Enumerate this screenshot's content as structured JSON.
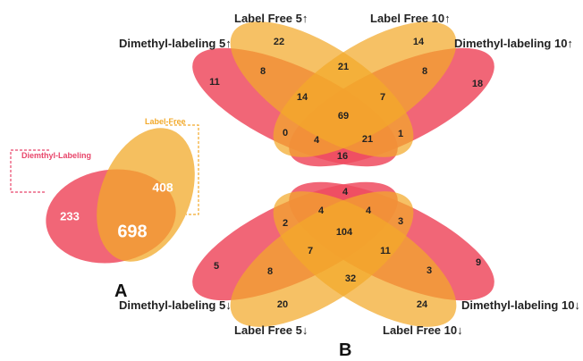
{
  "colors": {
    "dimethyl": "#ef4b5f",
    "label_free": "#f2a92a",
    "dimethyl_side_label": "#e8456a",
    "label_free_side_label": "#f2a92a"
  },
  "panel_a": {
    "letter": "A",
    "dimethyl_label": "Diemthyl-Labeling",
    "label_free_label": "Label-Free",
    "dimethyl_only": "233",
    "overlap": "698",
    "label_free_only": "408"
  },
  "panel_b": {
    "letter": "B",
    "top": {
      "set_labels": {
        "lf5": "Label Free 5↑",
        "lf10": "Label Free 10↑",
        "dm5": "Dimethyl-labeling 5↑",
        "dm10": "Dimethyl-labeling 10↑"
      },
      "counts": {
        "c22": "22",
        "c14a": "14",
        "c11": "11",
        "c8a": "8",
        "c21a": "21",
        "c8b": "8",
        "c18": "18",
        "c14b": "14",
        "c7": "7",
        "c69": "69",
        "c0": "0",
        "c4": "4",
        "c21b": "21",
        "c1": "1",
        "c16": "16"
      }
    },
    "bottom": {
      "set_labels": {
        "dm5": "Dimethyl-labeling 5↓",
        "dm10": "Dimethyl-labeling 10↓",
        "lf5": "Label Free 5↓",
        "lf10": "Label Free 10↓"
      },
      "counts": {
        "c4a": "4",
        "c4b": "4",
        "c4c": "4",
        "c2": "2",
        "c3a": "3",
        "c104": "104",
        "c7": "7",
        "c11": "11",
        "c5": "5",
        "c9": "9",
        "c8": "8",
        "c3b": "3",
        "c32": "32",
        "c20": "20",
        "c24": "24"
      }
    }
  }
}
